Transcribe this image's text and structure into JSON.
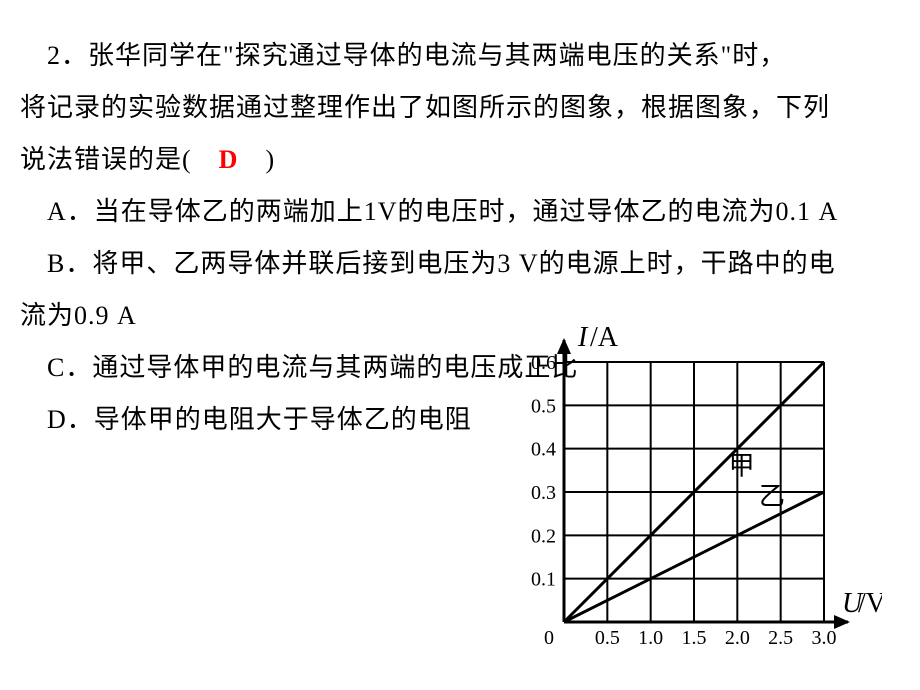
{
  "question": {
    "line1": "　2．张华同学在\"探究通过导体的电流与其两端电压的关系\"时，",
    "line2": "将记录的实验数据通过整理作出了如图所示的图象，根据图象，下列",
    "line3_before": "说法错误的是(　",
    "answer": "D",
    "line3_after": "　)",
    "optA": "　A．当在导体乙的两端加上1V的电压时，通过导体乙的电流为0.1 A",
    "optB1": "　B．将甲、乙两导体并联后接到电压为3 V的电源上时，干路中的电",
    "optB2": "流为0.9 A",
    "optC": "　C．通过导体甲的电流与其两端的电压成正比",
    "optD": "　D．导体甲的电阻大于导体乙的电阻"
  },
  "chart": {
    "type": "line-scatter",
    "y_label": "I/A",
    "x_label": "U/V",
    "y_ticks": [
      "0.1",
      "0.2",
      "0.3",
      "0.4",
      "0.5",
      "0.6"
    ],
    "x_ticks": [
      "0.5",
      "1.0",
      "1.5",
      "2.0",
      "2.5",
      "3.0"
    ],
    "origin_label": "0",
    "x_cells": 6,
    "y_cells": 6,
    "y_max": 0.6,
    "x_max": 3.0,
    "y_step": 0.1,
    "x_step": 0.5,
    "series": {
      "jia": {
        "label": "甲",
        "end_u": 3.0,
        "end_i": 0.6
      },
      "yi": {
        "label": "乙",
        "end_u": 3.0,
        "end_i": 0.3
      }
    },
    "colors": {
      "axis": "#000000",
      "grid": "#000000",
      "line": "#000000",
      "text": "#000000",
      "bg": "#ffffff"
    },
    "stroke": {
      "axis": 3,
      "grid": 2,
      "line": 3
    },
    "font": {
      "axis_label": 28,
      "tick": 20,
      "series_label": 26
    }
  }
}
